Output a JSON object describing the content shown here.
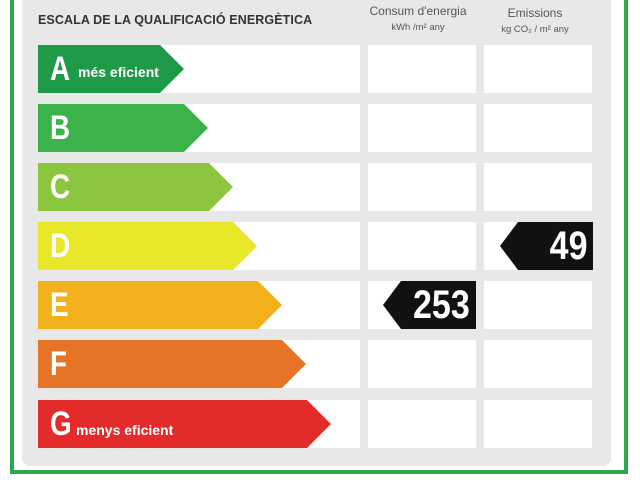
{
  "title": "ESCALA DE LA QUALIFICACIÓ ENERGÈTICA",
  "columns": {
    "energy": {
      "label": "Consum d'energia",
      "unit": "kWh /m² any"
    },
    "emissions": {
      "label": "Emissions",
      "unit": "kg CO₂ / m² any"
    }
  },
  "ratings": [
    {
      "letter": "A",
      "label": "més eficient",
      "color": "#1f9a48"
    },
    {
      "letter": "B",
      "label": "",
      "color": "#3bb24a"
    },
    {
      "letter": "C",
      "label": "",
      "color": "#8cc63f"
    },
    {
      "letter": "D",
      "label": "",
      "color": "#e9e72a"
    },
    {
      "letter": "E",
      "label": "",
      "color": "#f3b21c"
    },
    {
      "letter": "F",
      "label": "",
      "color": "#e57427"
    },
    {
      "letter": "G",
      "label": "menys eficient",
      "color": "#e32b2b"
    }
  ],
  "indicators": {
    "energy": {
      "rating": "E",
      "value": "253"
    },
    "emissions": {
      "rating": "D",
      "value": "49"
    }
  },
  "colors": {
    "frame": "#2aa84a",
    "panel": "#e8e8e8",
    "indicator": "#111111"
  }
}
